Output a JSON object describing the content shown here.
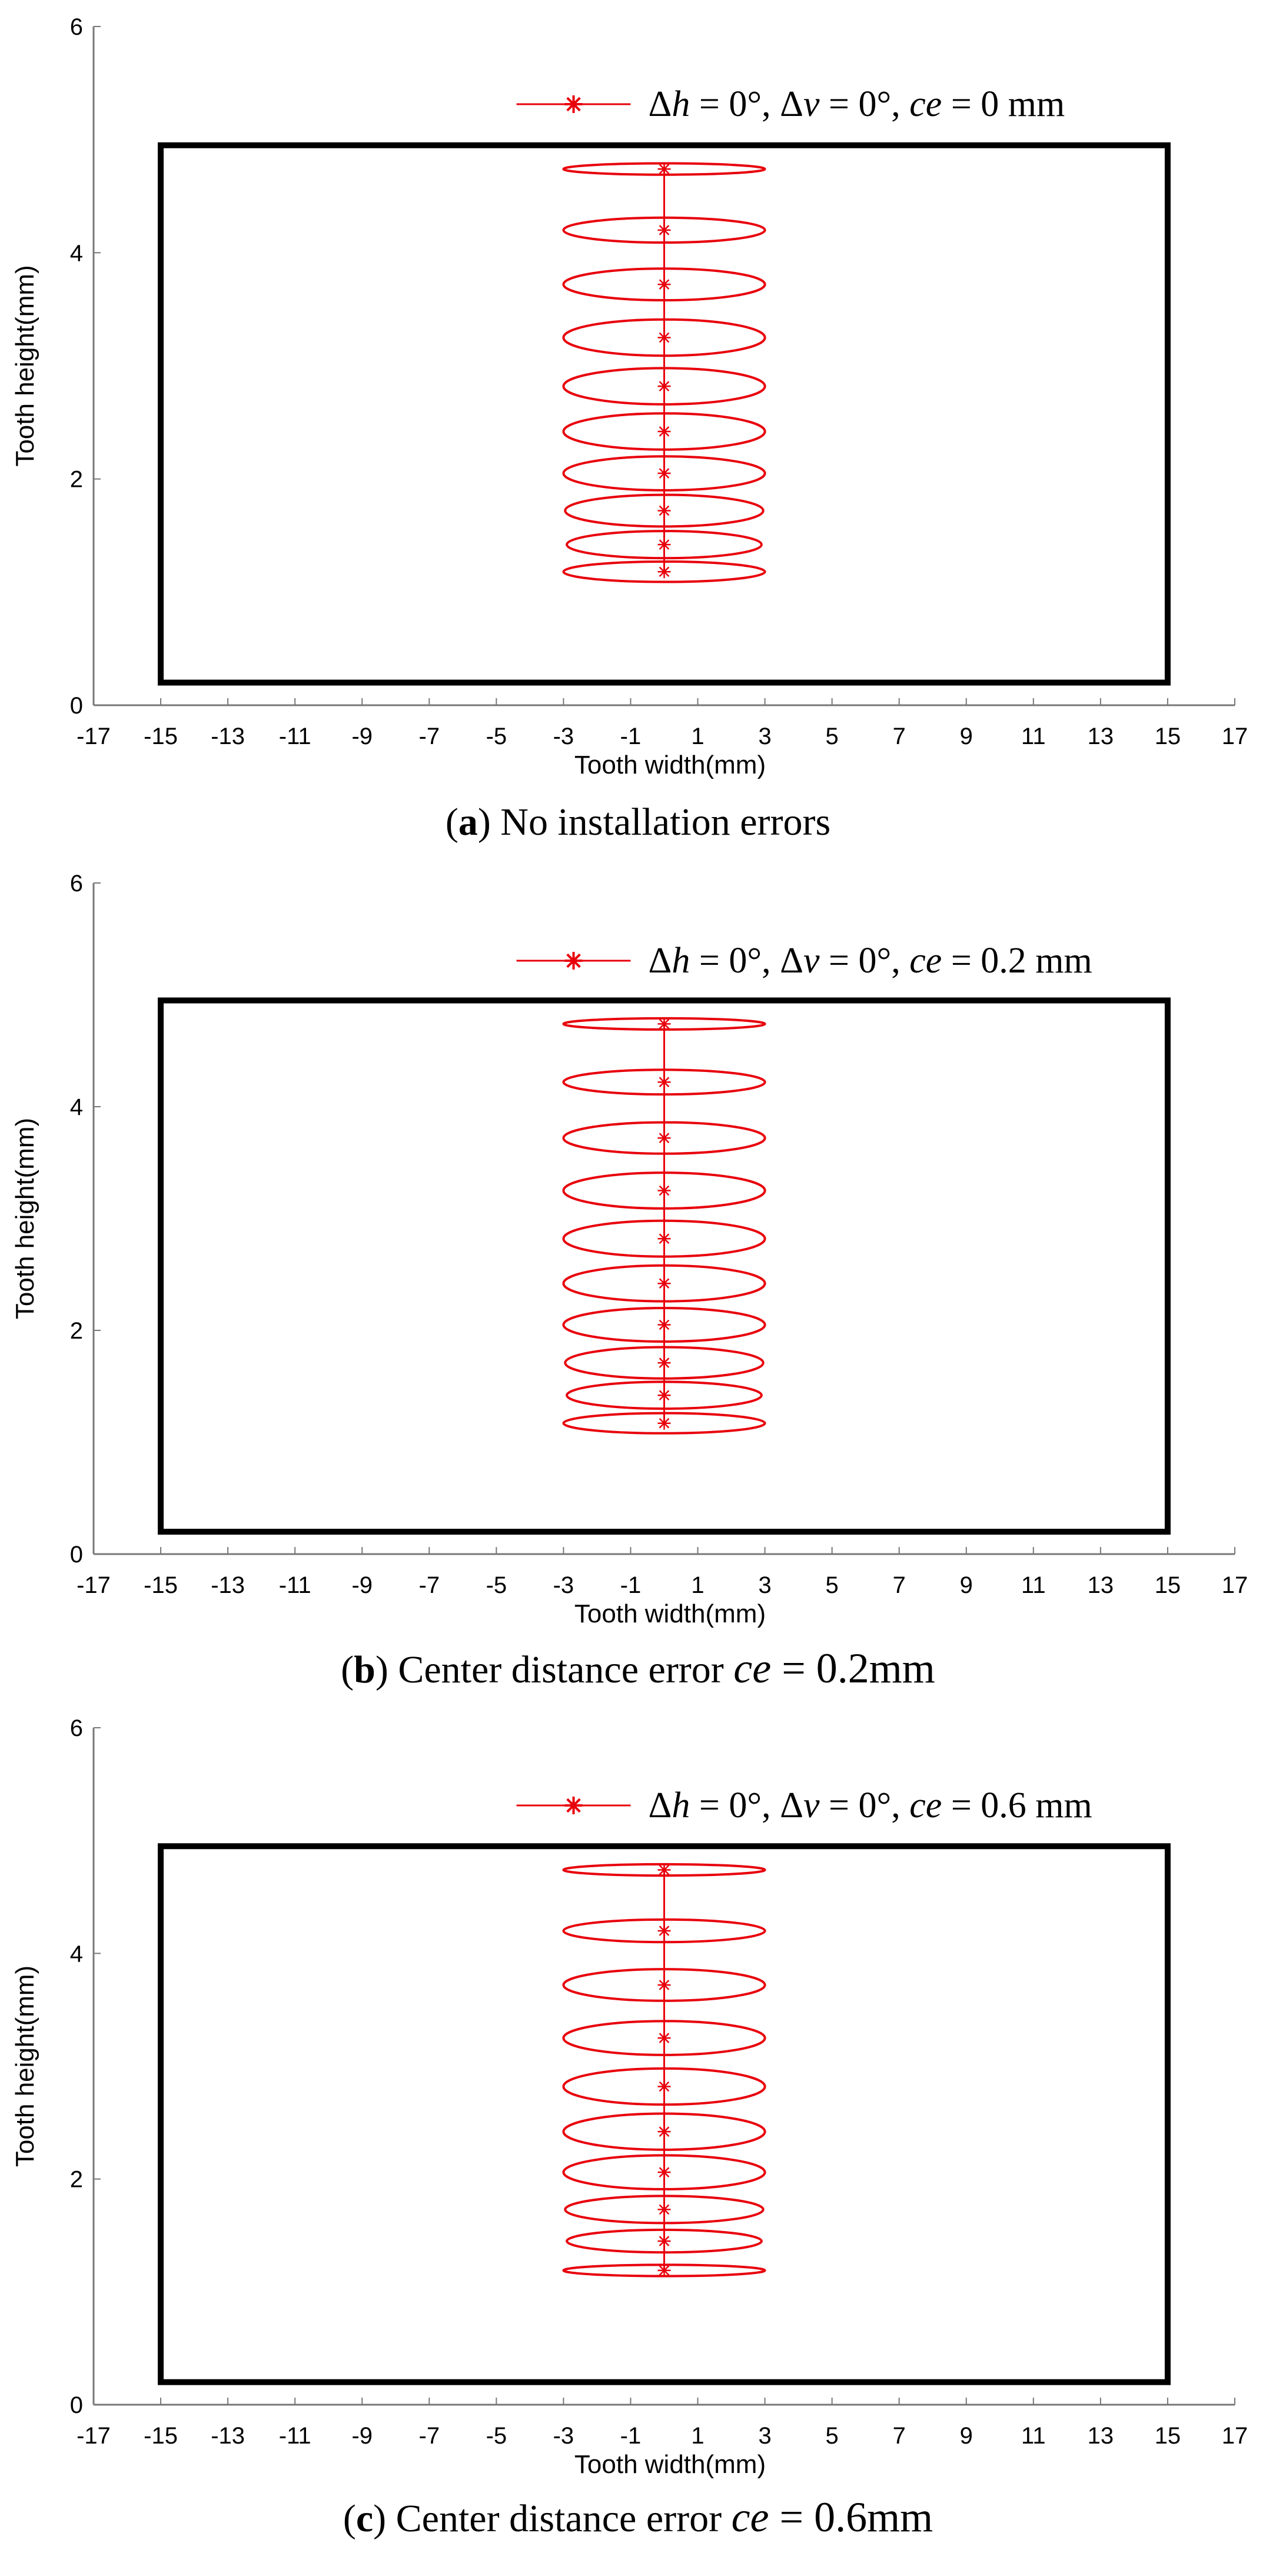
{
  "chart_data": [
    {
      "type": "scatter",
      "xlabel": "Tooth width(mm)",
      "ylabel": "Tooth height(mm)",
      "xlim": [
        -17,
        17
      ],
      "ylim": [
        0,
        6
      ],
      "xticks": [
        "-17",
        "-15",
        "-13",
        "-11",
        "-9",
        "-7",
        "-5",
        "-3",
        "-1",
        "1",
        "3",
        "5",
        "7",
        "9",
        "11",
        "13",
        "15",
        "17"
      ],
      "yticks": [
        "0",
        "2",
        "4",
        "6"
      ],
      "series_color": "#e8000b",
      "tooth_boundary": {
        "x": [
          -15,
          15
        ],
        "y": [
          0.2,
          4.95
        ]
      },
      "legend": {
        "dh": "0",
        "dv": "0",
        "ce": "0"
      },
      "contact_points": [
        {
          "x": 0,
          "y": 1.18,
          "a": 3.0,
          "b": 0.09
        },
        {
          "x": 0,
          "y": 1.42,
          "a": 2.9,
          "b": 0.12
        },
        {
          "x": 0,
          "y": 1.72,
          "a": 2.95,
          "b": 0.14
        },
        {
          "x": 0,
          "y": 2.05,
          "a": 3.0,
          "b": 0.15
        },
        {
          "x": 0,
          "y": 2.42,
          "a": 3.0,
          "b": 0.16
        },
        {
          "x": 0,
          "y": 2.82,
          "a": 3.0,
          "b": 0.16
        },
        {
          "x": 0,
          "y": 3.25,
          "a": 3.0,
          "b": 0.16
        },
        {
          "x": 0,
          "y": 3.72,
          "a": 3.0,
          "b": 0.14
        },
        {
          "x": 0,
          "y": 4.2,
          "a": 3.0,
          "b": 0.11
        },
        {
          "x": 0,
          "y": 4.74,
          "a": 3.0,
          "b": 0.05
        }
      ]
    },
    {
      "type": "scatter",
      "xlabel": "Tooth width(mm)",
      "ylabel": "Tooth height(mm)",
      "xlim": [
        -17,
        17
      ],
      "ylim": [
        0,
        6
      ],
      "xticks": [
        "-17",
        "-15",
        "-13",
        "-11",
        "-9",
        "-7",
        "-5",
        "-3",
        "-1",
        "1",
        "3",
        "5",
        "7",
        "9",
        "11",
        "13",
        "15",
        "17"
      ],
      "yticks": [
        "0",
        "2",
        "4",
        "6"
      ],
      "series_color": "#e8000b",
      "tooth_boundary": {
        "x": [
          -15,
          15
        ],
        "y": [
          0.2,
          4.95
        ]
      },
      "legend": {
        "dh": "0",
        "dv": "0",
        "ce": "0.2"
      },
      "contact_points": [
        {
          "x": 0,
          "y": 1.17,
          "a": 3.0,
          "b": 0.09
        },
        {
          "x": 0,
          "y": 1.42,
          "a": 2.9,
          "b": 0.12
        },
        {
          "x": 0,
          "y": 1.71,
          "a": 2.95,
          "b": 0.14
        },
        {
          "x": 0,
          "y": 2.05,
          "a": 3.0,
          "b": 0.15
        },
        {
          "x": 0,
          "y": 2.42,
          "a": 3.0,
          "b": 0.16
        },
        {
          "x": 0,
          "y": 2.82,
          "a": 3.0,
          "b": 0.16
        },
        {
          "x": 0,
          "y": 3.25,
          "a": 3.0,
          "b": 0.16
        },
        {
          "x": 0,
          "y": 3.72,
          "a": 3.0,
          "b": 0.14
        },
        {
          "x": 0,
          "y": 4.22,
          "a": 3.0,
          "b": 0.11
        },
        {
          "x": 0,
          "y": 4.74,
          "a": 3.0,
          "b": 0.05
        }
      ]
    },
    {
      "type": "scatter",
      "xlabel": "Tooth width(mm)",
      "ylabel": "Tooth height(mm)",
      "xlim": [
        -17,
        17
      ],
      "ylim": [
        0,
        6
      ],
      "xticks": [
        "-17",
        "-15",
        "-13",
        "-11",
        "-9",
        "-7",
        "-5",
        "-3",
        "-1",
        "1",
        "3",
        "5",
        "7",
        "9",
        "11",
        "13",
        "15",
        "17"
      ],
      "yticks": [
        "0",
        "2",
        "4",
        "6"
      ],
      "series_color": "#e8000b",
      "tooth_boundary": {
        "x": [
          -15,
          15
        ],
        "y": [
          0.2,
          4.95
        ]
      },
      "legend": {
        "dh": "0",
        "dv": "0",
        "ce": "0.6"
      },
      "contact_points": [
        {
          "x": 0,
          "y": 1.19,
          "a": 3.0,
          "b": 0.05
        },
        {
          "x": 0,
          "y": 1.45,
          "a": 2.9,
          "b": 0.1
        },
        {
          "x": 0,
          "y": 1.73,
          "a": 2.95,
          "b": 0.12
        },
        {
          "x": 0,
          "y": 2.06,
          "a": 3.0,
          "b": 0.15
        },
        {
          "x": 0,
          "y": 2.42,
          "a": 3.0,
          "b": 0.16
        },
        {
          "x": 0,
          "y": 2.82,
          "a": 3.0,
          "b": 0.16
        },
        {
          "x": 0,
          "y": 3.25,
          "a": 3.0,
          "b": 0.15
        },
        {
          "x": 0,
          "y": 3.72,
          "a": 3.0,
          "b": 0.14
        },
        {
          "x": 0,
          "y": 4.2,
          "a": 3.0,
          "b": 0.1
        },
        {
          "x": 0,
          "y": 4.74,
          "a": 3.0,
          "b": 0.05
        }
      ]
    }
  ],
  "captions": [
    {
      "letter": "a",
      "text": " No installation errors",
      "math": ""
    },
    {
      "letter": "b",
      "text": " Center distance error ",
      "math": "0.2mm"
    },
    {
      "letter": "c",
      "text": " Center distance error ",
      "math": "0.6mm"
    }
  ]
}
